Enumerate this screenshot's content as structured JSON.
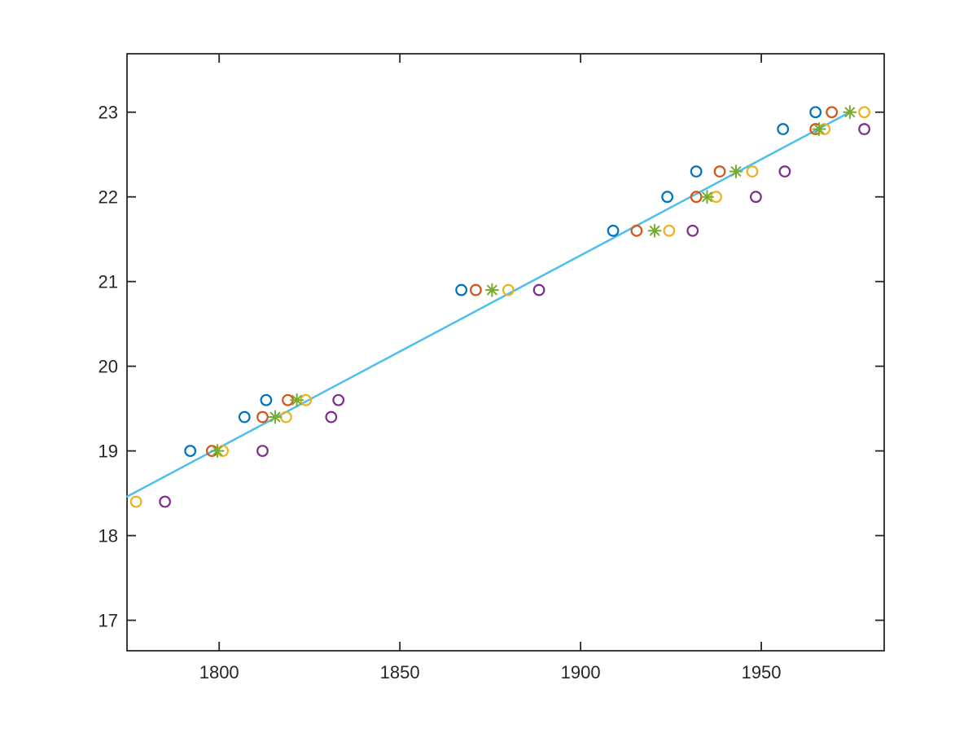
{
  "figure": {
    "background": "#ffffff",
    "axes_color": "#262626",
    "tick_label_color": "#262626"
  },
  "chart_data": {
    "type": "scatter",
    "title": "",
    "xlabel": "",
    "ylabel": "",
    "grid": false,
    "legend": "none",
    "xlim": [
      1774.5,
      1984
    ],
    "ylim": [
      16.64,
      23.69
    ],
    "x_ticks": [
      1800,
      1850,
      1900,
      1950
    ],
    "y_ticks": [
      17,
      18,
      19,
      20,
      21,
      22,
      23
    ],
    "series": [
      {
        "name": "blue-circles",
        "color": "#0072BD",
        "marker": "circle",
        "points": [
          [
            1792,
            19.0
          ],
          [
            1807,
            19.4
          ],
          [
            1813,
            19.6
          ],
          [
            1867,
            20.9
          ],
          [
            1909,
            21.6
          ],
          [
            1924,
            22.0
          ],
          [
            1932,
            22.3
          ],
          [
            1956,
            22.8
          ],
          [
            1965,
            23.0
          ]
        ]
      },
      {
        "name": "orange-circles",
        "color": "#D95319",
        "marker": "circle",
        "points": [
          [
            1798,
            19.0
          ],
          [
            1812,
            19.4
          ],
          [
            1819,
            19.6
          ],
          [
            1871,
            20.9
          ],
          [
            1915.5,
            21.6
          ],
          [
            1932,
            22.0
          ],
          [
            1938.5,
            22.3
          ],
          [
            1965,
            22.8
          ],
          [
            1969.5,
            23.0
          ]
        ]
      },
      {
        "name": "yellow-circles",
        "color": "#EDB120",
        "marker": "circle",
        "points": [
          [
            1777,
            18.4
          ],
          [
            1801,
            19.0
          ],
          [
            1818.5,
            19.4
          ],
          [
            1824,
            19.6
          ],
          [
            1880,
            20.9
          ],
          [
            1924.5,
            21.6
          ],
          [
            1937.5,
            22.0
          ],
          [
            1947.5,
            22.3
          ],
          [
            1967.5,
            22.8
          ],
          [
            1978.5,
            23.0
          ]
        ]
      },
      {
        "name": "purple-circles",
        "color": "#7E2F8E",
        "marker": "circle",
        "points": [
          [
            1785,
            18.4
          ],
          [
            1812,
            19.0
          ],
          [
            1831,
            19.4
          ],
          [
            1833,
            19.6
          ],
          [
            1888.5,
            20.9
          ],
          [
            1931,
            21.6
          ],
          [
            1948.5,
            22.0
          ],
          [
            1956.5,
            22.3
          ],
          [
            1978.5,
            22.8
          ]
        ]
      },
      {
        "name": "green-asterisks",
        "color": "#77AC30",
        "marker": "asterisk",
        "points": [
          [
            1799.5,
            19.0
          ],
          [
            1815.5,
            19.4
          ],
          [
            1821.5,
            19.6
          ],
          [
            1875.5,
            20.9
          ],
          [
            1920.5,
            21.6
          ],
          [
            1935,
            22.0
          ],
          [
            1943,
            22.3
          ],
          [
            1966,
            22.8
          ],
          [
            1974.5,
            23.0
          ]
        ]
      }
    ],
    "fit_line": {
      "color": "#4DBEEE",
      "width": 2.5,
      "x1": 1774.5,
      "y1": 18.46,
      "x2": 1974.5,
      "y2": 23.0
    }
  }
}
